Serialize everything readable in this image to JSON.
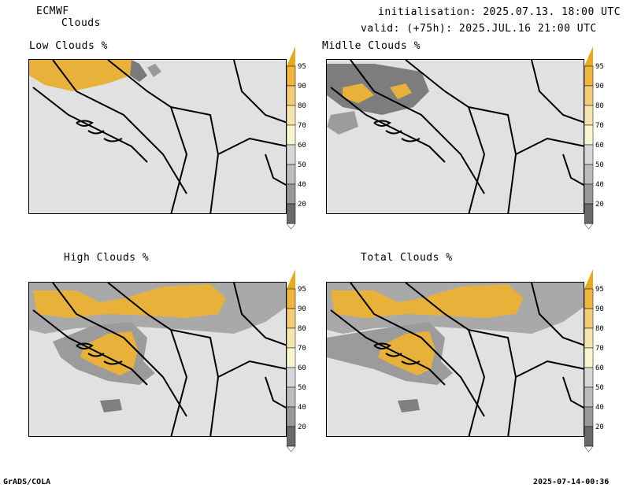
{
  "header": {
    "model": "ECMWF",
    "product": "Clouds",
    "init": "initialisation: 2025.07.13. 18:00 UTC",
    "valid": "valid: (+75h): 2025.JUL.16 21:00 UTC"
  },
  "footer": {
    "left": "GrADS/COLA",
    "right": "2025-07-14-00:36"
  },
  "panels": [
    {
      "title": "Low Clouds %"
    },
    {
      "title": "Midlle Clouds %"
    },
    {
      "title": "High Clouds %"
    },
    {
      "title": "Total Clouds %"
    }
  ],
  "colorbar": {
    "labels": [
      "95",
      "90",
      "80",
      "70",
      "60",
      "50",
      "40",
      "20"
    ],
    "colors": [
      "#e8a820",
      "#efb740",
      "#f3cc7a",
      "#f5e6b0",
      "#f7f7cf",
      "#d8d8d8",
      "#bdbdbd",
      "#999999",
      "#6a6a6a",
      "#ffffff"
    ]
  }
}
